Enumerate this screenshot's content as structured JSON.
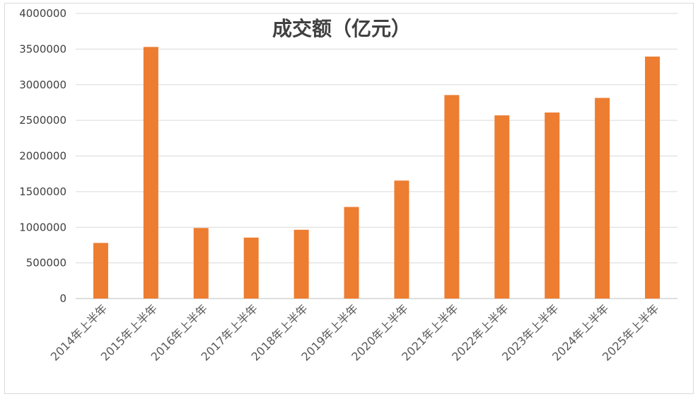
{
  "chart_data": {
    "type": "bar",
    "title": "成交额（亿元）",
    "categories": [
      "2014年上半年",
      "2015年上半年",
      "2016年上半年",
      "2017年上半年",
      "2018年上半年",
      "2019年上半年",
      "2020年上半年",
      "2021年上半年",
      "2022年上半年",
      "2023年上半年",
      "2024年上半年",
      "2025年上半年"
    ],
    "series": [
      {
        "values": [
          780000,
          3530000,
          990000,
          855000,
          965000,
          1285000,
          1655000,
          2855000,
          2570000,
          2610000,
          2815000,
          3395000
        ]
      }
    ],
    "y_ticks": [
      "0",
      "500000",
      "1000000",
      "1500000",
      "2000000",
      "2500000",
      "3000000",
      "3500000",
      "4000000"
    ],
    "ylim": [
      0,
      4000000
    ],
    "grid": true,
    "legend": "none",
    "colors": {
      "bar": "#ed7d31",
      "grid": "#d9d9d9",
      "axis": "#bfbfbf"
    }
  }
}
